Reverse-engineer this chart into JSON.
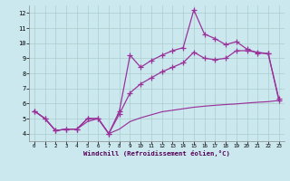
{
  "background_color": "#cce8ef",
  "grid_color": "#aacccc",
  "line_color": "#993399",
  "xlim": [
    -0.5,
    23.5
  ],
  "ylim": [
    3.5,
    12.5
  ],
  "xtick_vals": [
    0,
    1,
    2,
    3,
    4,
    5,
    6,
    7,
    8,
    9,
    10,
    11,
    12,
    13,
    14,
    15,
    16,
    17,
    18,
    19,
    20,
    21,
    22,
    23
  ],
  "ytick_vals": [
    4,
    5,
    6,
    7,
    8,
    9,
    10,
    11,
    12
  ],
  "xlabel": "Windchill (Refroidissement éolien,°C)",
  "line_top_x": [
    0,
    1,
    2,
    3,
    4,
    5,
    6,
    7,
    8,
    9,
    10,
    11,
    12,
    13,
    14,
    15,
    16,
    17,
    18,
    19,
    20,
    21,
    22,
    23
  ],
  "line_top_y": [
    5.5,
    5.0,
    4.2,
    4.3,
    4.3,
    5.0,
    5.0,
    4.0,
    5.5,
    9.2,
    8.4,
    8.85,
    9.2,
    9.5,
    9.7,
    12.2,
    10.6,
    10.3,
    9.9,
    10.1,
    9.6,
    9.35,
    9.3,
    6.2
  ],
  "line_mid_x": [
    0,
    1,
    2,
    3,
    4,
    5,
    6,
    7,
    8,
    9,
    10,
    11,
    12,
    13,
    14,
    15,
    16,
    17,
    18,
    19,
    20,
    21,
    22,
    23
  ],
  "line_mid_y": [
    5.5,
    5.0,
    4.2,
    4.3,
    4.3,
    5.0,
    5.0,
    4.0,
    5.3,
    6.7,
    7.3,
    7.7,
    8.1,
    8.4,
    8.7,
    9.4,
    9.0,
    8.9,
    9.0,
    9.5,
    9.5,
    9.4,
    9.3,
    6.3
  ],
  "line_low_x": [
    0,
    1,
    2,
    3,
    4,
    5,
    6,
    7,
    8,
    9,
    10,
    11,
    12,
    13,
    14,
    15,
    16,
    17,
    18,
    19,
    20,
    21,
    22,
    23
  ],
  "line_low_y": [
    5.5,
    5.0,
    4.2,
    4.3,
    4.3,
    4.8,
    5.0,
    4.0,
    4.3,
    4.8,
    5.05,
    5.25,
    5.45,
    5.55,
    5.65,
    5.75,
    5.82,
    5.88,
    5.93,
    5.97,
    6.03,
    6.08,
    6.12,
    6.2
  ]
}
